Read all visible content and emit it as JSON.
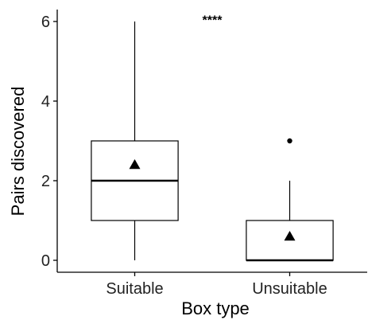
{
  "chart_data": {
    "type": "boxplot",
    "xlabel": "Box type",
    "ylabel": "Pairs discovered",
    "ylim": [
      -0.3,
      6.3
    ],
    "yticks": [
      0,
      2,
      4,
      6
    ],
    "categories": [
      "Suitable",
      "Unsuitable"
    ],
    "boxes": [
      {
        "category": "Suitable",
        "whisker_low": 0,
        "q1": 1,
        "median": 2,
        "q3": 3,
        "whisker_high": 6,
        "mean": 2.4,
        "outliers": []
      },
      {
        "category": "Unsuitable",
        "whisker_low": 0,
        "q1": 0,
        "median": 0,
        "q3": 1,
        "whisker_high": 2,
        "mean": 0.6,
        "outliers": [
          3
        ]
      }
    ],
    "significance": {
      "label": "****",
      "y": 6.05
    },
    "grid": false,
    "legend": "none"
  }
}
